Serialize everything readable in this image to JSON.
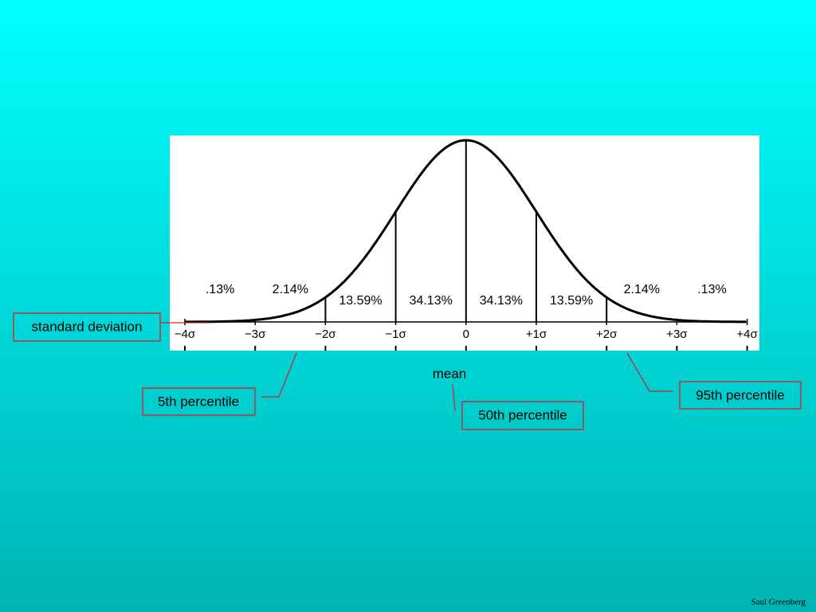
{
  "figure": {
    "region_labels": [
      ".13%",
      "2.14%",
      "13.59%",
      "34.13%",
      "34.13%",
      "13.59%",
      "2.14%",
      ".13%"
    ],
    "axis_labels": [
      "−4σ",
      "−3σ",
      "−2σ",
      "−1σ",
      "0",
      "+1σ",
      "+2σ",
      "+3σ",
      "+4σ"
    ]
  },
  "callouts": {
    "standard_deviation": "standard deviation",
    "fifth_percentile": "5th percentile",
    "mean": "mean",
    "fiftieth_percentile": "50th percentile",
    "ninety_fifth_percentile": "95th percentile"
  },
  "footer": "Saul Greenberg"
}
